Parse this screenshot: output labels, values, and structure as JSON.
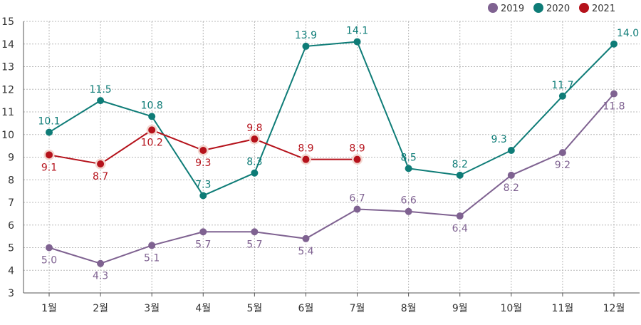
{
  "chart_data": {
    "type": "line",
    "categories": [
      "1월",
      "2월",
      "3월",
      "4월",
      "5월",
      "6월",
      "7월",
      "8월",
      "9월",
      "10월",
      "11월",
      "12월"
    ],
    "ylim": [
      3,
      15
    ],
    "yticks": [
      3,
      4,
      5,
      6,
      7,
      8,
      9,
      10,
      11,
      12,
      13,
      14,
      15
    ],
    "grid": true,
    "legend_position": "top-right",
    "series": [
      {
        "name": "2019",
        "color": "#7f6291",
        "values": [
          5.0,
          4.3,
          5.1,
          5.7,
          5.7,
          5.4,
          6.7,
          6.6,
          6.4,
          8.2,
          9.2,
          11.8
        ],
        "labels": [
          "5.0",
          "4.3",
          "5.1",
          "5.7",
          "5.7",
          "5.4",
          "6.7",
          "6.6",
          "6.4",
          "8.2",
          "9.2",
          "11.8"
        ],
        "label_pos": [
          "below",
          "below",
          "below",
          "below",
          "below",
          "below",
          "above",
          "above",
          "below",
          "below",
          "below",
          "below"
        ]
      },
      {
        "name": "2020",
        "color": "#0e7c77",
        "values": [
          10.1,
          11.5,
          10.8,
          7.3,
          8.3,
          13.9,
          14.1,
          8.5,
          8.2,
          9.3,
          11.7,
          14.0
        ],
        "labels": [
          "10.1",
          "11.5",
          "10.8",
          "7.3",
          "8.3",
          "13.9",
          "14.1",
          "8.5",
          "8.2",
          "9.3",
          "11.7",
          "14.0"
        ],
        "label_pos": [
          "above",
          "above",
          "above",
          "above",
          "above",
          "above",
          "above",
          "above",
          "above",
          "above-left",
          "above",
          "above-right"
        ]
      },
      {
        "name": "2021",
        "color": "#b5121b",
        "values": [
          9.1,
          8.7,
          10.2,
          9.3,
          9.8,
          8.9,
          8.9,
          null,
          null,
          null,
          null,
          null
        ],
        "labels": [
          "9.1",
          "8.7",
          "10.2",
          "9.3",
          "9.8",
          "8.9",
          "8.9",
          null,
          null,
          null,
          null,
          null
        ],
        "label_pos": [
          "below",
          "below",
          "below",
          "below",
          "above",
          "above",
          "above",
          null,
          null,
          null,
          null,
          null
        ]
      }
    ]
  }
}
